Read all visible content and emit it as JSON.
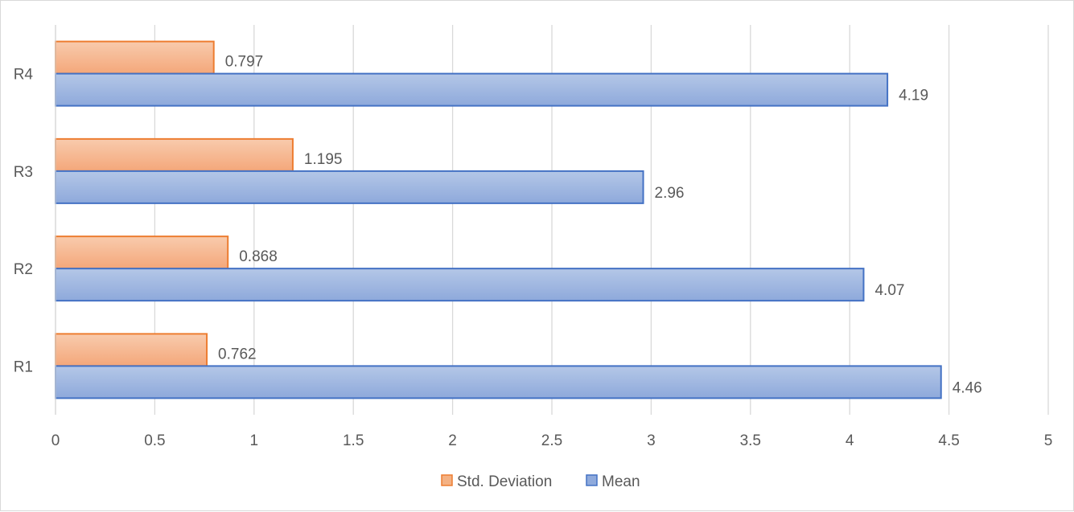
{
  "chart_data": {
    "type": "bar",
    "orientation": "horizontal",
    "categories": [
      "R1",
      "R2",
      "R3",
      "R4"
    ],
    "series": [
      {
        "name": "Mean",
        "values": [
          4.46,
          4.07,
          2.96,
          4.19
        ],
        "labels": [
          "4.46",
          "4.07",
          "2.96",
          "4.19"
        ],
        "color": "#8faadc",
        "border": "#4472c4"
      },
      {
        "name": "Std. Deviation",
        "values": [
          0.762,
          0.868,
          1.195,
          0.797
        ],
        "labels": [
          "0.762",
          "0.868",
          "1.195",
          "0.797"
        ],
        "color": "#f4b183",
        "border": "#ed7d31"
      }
    ],
    "xlim": [
      0,
      5
    ],
    "xticks": [
      "0",
      "0.5",
      "1",
      "1.5",
      "2",
      "2.5",
      "3",
      "3.5",
      "4",
      "4.5",
      "5"
    ],
    "grid": true,
    "legend": "bottom",
    "legend_order": [
      "Std. Deviation",
      "Mean"
    ],
    "title": "",
    "xlabel": "",
    "ylabel": ""
  }
}
